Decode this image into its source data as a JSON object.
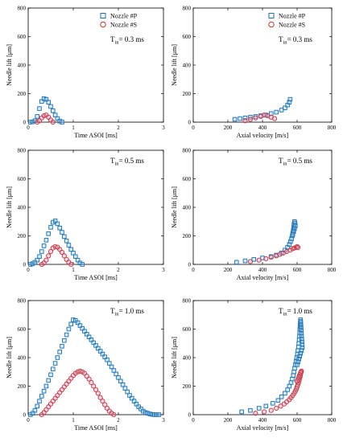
{
  "colors": {
    "nozzle_p": "#1f6fb4",
    "nozzle_s": "#c0392b",
    "nozzle_p_fill": "#8fd0ee",
    "nozzle_s_fill": "#f08adf"
  },
  "chart_data": [
    {
      "type": "scatter",
      "xlabel": "Time ASOI [ms]",
      "ylabel": "Needle lift [μm]",
      "xlim": [
        0,
        3
      ],
      "ylim": [
        0,
        800
      ],
      "xticks": [
        "0",
        "1",
        "2",
        "3"
      ],
      "yticks": [
        "0",
        "200",
        "400",
        "600",
        "800"
      ],
      "annotation": {
        "main": "T",
        "sub": "in",
        "rest": "= 0.3 ms"
      },
      "legend": [
        "Nozzle #P",
        "Nozzle #S"
      ],
      "legend_position": "top-right",
      "series": [
        {
          "name": "Nozzle #P",
          "marker": "square",
          "x": [
            0.05,
            0.1,
            0.15,
            0.2,
            0.25,
            0.3,
            0.35,
            0.4,
            0.45,
            0.5,
            0.55,
            0.6,
            0.65,
            0.7,
            0.75
          ],
          "y": [
            0,
            2,
            10,
            40,
            95,
            145,
            165,
            160,
            140,
            110,
            80,
            50,
            25,
            8,
            0
          ]
        },
        {
          "name": "Nozzle #S",
          "marker": "circle",
          "x": [
            0.2,
            0.25,
            0.3,
            0.35,
            0.4,
            0.45,
            0.5,
            0.55
          ],
          "y": [
            0,
            10,
            30,
            45,
            50,
            35,
            15,
            0
          ]
        }
      ]
    },
    {
      "type": "scatter",
      "xlabel": "Axial velocity [m/s]",
      "ylabel": "Needle lift [μm]",
      "xlim": [
        0,
        800
      ],
      "ylim": [
        0,
        800
      ],
      "xticks": [
        "0",
        "200",
        "400",
        "600",
        "800"
      ],
      "yticks": [
        "0",
        "200",
        "400",
        "600",
        "800"
      ],
      "annotation": {
        "main": "T",
        "sub": "in",
        "rest": "= 0.3 ms"
      },
      "legend": [
        "Nozzle #P",
        "Nozzle #S"
      ],
      "legend_position": "top-right",
      "series": [
        {
          "name": "Nozzle #P",
          "marker": "square",
          "x": [
            240,
            270,
            300,
            330,
            360,
            390,
            420,
            450,
            480,
            510,
            530,
            545,
            555,
            560
          ],
          "y": [
            20,
            25,
            30,
            35,
            40,
            45,
            50,
            60,
            70,
            85,
            100,
            120,
            140,
            160
          ]
        },
        {
          "name": "Nozzle #S",
          "marker": "circle",
          "x": [
            300,
            330,
            360,
            390,
            410,
            430,
            450,
            470
          ],
          "y": [
            10,
            20,
            30,
            40,
            50,
            45,
            35,
            25
          ]
        }
      ]
    },
    {
      "type": "scatter",
      "xlabel": "Time ASOI [ms]",
      "ylabel": "Needle lift [μm]",
      "xlim": [
        0,
        3
      ],
      "ylim": [
        0,
        800
      ],
      "xticks": [
        "0",
        "1",
        "2",
        "3"
      ],
      "yticks": [
        "0",
        "200",
        "400",
        "600",
        "800"
      ],
      "annotation": {
        "main": "T",
        "sub": "in",
        "rest": "= 0.5 ms"
      },
      "series": [
        {
          "name": "Nozzle #P",
          "marker": "square",
          "x": [
            0.05,
            0.1,
            0.15,
            0.2,
            0.25,
            0.3,
            0.35,
            0.4,
            0.45,
            0.5,
            0.55,
            0.6,
            0.65,
            0.7,
            0.75,
            0.8,
            0.85,
            0.9,
            0.95,
            1.0,
            1.05,
            1.1,
            1.15,
            1.2
          ],
          "y": [
            0,
            5,
            15,
            30,
            55,
            90,
            130,
            170,
            215,
            260,
            295,
            305,
            285,
            255,
            225,
            195,
            165,
            135,
            105,
            80,
            55,
            30,
            10,
            0
          ]
        },
        {
          "name": "Nozzle #S",
          "marker": "circle",
          "x": [
            0.3,
            0.35,
            0.4,
            0.45,
            0.5,
            0.55,
            0.6,
            0.65,
            0.7,
            0.75,
            0.8,
            0.85,
            0.9,
            0.95
          ],
          "y": [
            0,
            10,
            30,
            60,
            90,
            115,
            125,
            120,
            105,
            85,
            60,
            35,
            15,
            0
          ]
        }
      ]
    },
    {
      "type": "scatter",
      "xlabel": "Axial velocity [m/s]",
      "ylabel": "Needle lift [μm]",
      "xlim": [
        0,
        800
      ],
      "ylim": [
        0,
        800
      ],
      "xticks": [
        "0",
        "200",
        "400",
        "600",
        "800"
      ],
      "yticks": [
        "0",
        "200",
        "400",
        "600",
        "800"
      ],
      "annotation": {
        "main": "T",
        "sub": "in",
        "rest": "= 0.5 ms"
      },
      "series": [
        {
          "name": "Nozzle #P",
          "marker": "square",
          "x": [
            250,
            300,
            350,
            400,
            450,
            480,
            510,
            530,
            545,
            555,
            562,
            568,
            572,
            575,
            578,
            580,
            582,
            585,
            588,
            590,
            585,
            580,
            575
          ],
          "y": [
            15,
            25,
            35,
            45,
            55,
            65,
            80,
            100,
            120,
            140,
            160,
            180,
            200,
            220,
            240,
            260,
            280,
            300,
            290,
            270,
            250,
            230,
            210
          ]
        },
        {
          "name": "Nozzle #S",
          "marker": "circle",
          "x": [
            330,
            380,
            420,
            450,
            480,
            500,
            520,
            540,
            560,
            575,
            585,
            595,
            600,
            605
          ],
          "y": [
            20,
            30,
            40,
            50,
            60,
            70,
            80,
            90,
            100,
            110,
            115,
            120,
            125,
            118
          ]
        }
      ]
    },
    {
      "type": "scatter",
      "xlabel": "Time ASOI [ms]",
      "ylabel": "Needle lift [μm]",
      "xlim": [
        0,
        3
      ],
      "ylim": [
        0,
        800
      ],
      "xticks": [
        "0",
        "1",
        "2",
        "3"
      ],
      "yticks": [
        "0",
        "200",
        "400",
        "600",
        "800"
      ],
      "annotation": {
        "main": "T",
        "sub": "in",
        "rest": "= 1.0 ms"
      },
      "series": [
        {
          "name": "Nozzle #P",
          "marker": "square",
          "x": [
            0.05,
            0.1,
            0.15,
            0.2,
            0.25,
            0.3,
            0.35,
            0.4,
            0.45,
            0.5,
            0.55,
            0.6,
            0.65,
            0.7,
            0.75,
            0.8,
            0.85,
            0.9,
            0.95,
            1.0,
            1.05,
            1.1,
            1.15,
            1.2,
            1.25,
            1.3,
            1.35,
            1.4,
            1.45,
            1.5,
            1.55,
            1.6,
            1.65,
            1.7,
            1.75,
            1.8,
            1.85,
            1.9,
            1.95,
            2.0,
            2.05,
            2.1,
            2.15,
            2.2,
            2.25,
            2.3,
            2.35,
            2.4,
            2.45,
            2.5,
            2.55,
            2.6,
            2.65,
            2.7,
            2.75,
            2.8,
            2.85,
            2.9
          ],
          "y": [
            0,
            10,
            30,
            60,
            95,
            130,
            165,
            200,
            240,
            280,
            320,
            360,
            400,
            440,
            480,
            520,
            560,
            600,
            635,
            665,
            660,
            645,
            625,
            605,
            585,
            565,
            545,
            525,
            505,
            485,
            465,
            445,
            425,
            405,
            385,
            360,
            335,
            310,
            285,
            260,
            235,
            210,
            185,
            160,
            135,
            115,
            95,
            75,
            55,
            40,
            25,
            15,
            10,
            5,
            2,
            0,
            0,
            0
          ]
        },
        {
          "name": "Nozzle #S",
          "marker": "circle",
          "x": [
            0.3,
            0.35,
            0.4,
            0.45,
            0.5,
            0.55,
            0.6,
            0.65,
            0.7,
            0.75,
            0.8,
            0.85,
            0.9,
            0.95,
            1.0,
            1.05,
            1.1,
            1.15,
            1.2,
            1.25,
            1.3,
            1.35,
            1.4,
            1.45,
            1.5,
            1.55,
            1.6,
            1.65,
            1.7,
            1.75,
            1.8,
            1.85,
            1.9
          ],
          "y": [
            0,
            15,
            35,
            55,
            75,
            95,
            115,
            135,
            155,
            175,
            195,
            215,
            235,
            255,
            275,
            290,
            300,
            305,
            300,
            290,
            270,
            250,
            225,
            200,
            175,
            150,
            120,
            95,
            70,
            45,
            25,
            10,
            0
          ]
        }
      ]
    },
    {
      "type": "scatter",
      "xlabel": "Axial velocity [m/s]",
      "ylabel": "Needle lift [μm]",
      "xlim": [
        0,
        800
      ],
      "ylim": [
        0,
        800
      ],
      "xticks": [
        "0",
        "200",
        "400",
        "600",
        "800"
      ],
      "yticks": [
        "0",
        "200",
        "400",
        "600",
        "800"
      ],
      "annotation": {
        "main": "T",
        "sub": "in",
        "rest": "= 1.0 ms"
      },
      "series": [
        {
          "name": "Nozzle #P",
          "marker": "square",
          "x": [
            280,
            330,
            380,
            420,
            460,
            490,
            510,
            530,
            545,
            555,
            565,
            572,
            578,
            582,
            586,
            590,
            594,
            598,
            602,
            605,
            608,
            610,
            612,
            614,
            615,
            616,
            617,
            618,
            619,
            620,
            621,
            622,
            623,
            624,
            625,
            626,
            627,
            628,
            629,
            630,
            625,
            620,
            615,
            610,
            605,
            600
          ],
          "y": [
            20,
            30,
            45,
            60,
            80,
            100,
            125,
            150,
            175,
            200,
            225,
            250,
            275,
            300,
            325,
            350,
            375,
            400,
            425,
            450,
            475,
            500,
            525,
            550,
            575,
            600,
            620,
            640,
            655,
            665,
            650,
            630,
            610,
            590,
            570,
            550,
            530,
            510,
            490,
            470,
            450,
            430,
            410,
            390,
            370,
            350
          ]
        },
        {
          "name": "Nozzle #S",
          "marker": "circle",
          "x": [
            360,
            410,
            450,
            480,
            505,
            525,
            540,
            555,
            565,
            575,
            583,
            590,
            596,
            600,
            604,
            608,
            612,
            615,
            618,
            620,
            622,
            624,
            625,
            620,
            615,
            610,
            605,
            600
          ],
          "y": [
            10,
            20,
            30,
            45,
            60,
            75,
            90,
            105,
            120,
            135,
            150,
            165,
            180,
            195,
            210,
            225,
            240,
            255,
            270,
            285,
            295,
            300,
            305,
            295,
            280,
            265,
            250,
            235
          ]
        }
      ]
    }
  ]
}
